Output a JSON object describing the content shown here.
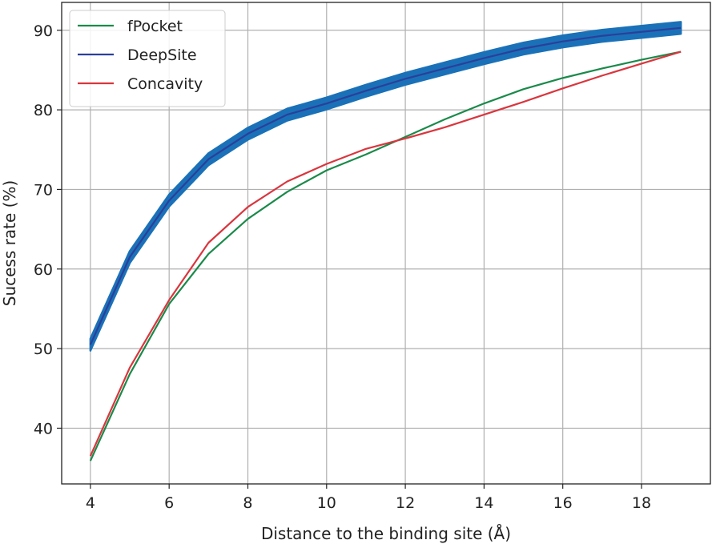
{
  "chart_data": {
    "type": "line",
    "title": "",
    "xlabel": "Distance to the binding site (Å)",
    "ylabel": "Sucess rate (%)",
    "xlim": [
      3.27,
      19.75
    ],
    "ylim": [
      33.0,
      93.5
    ],
    "xticks": [
      4,
      6,
      8,
      10,
      12,
      14,
      16,
      18
    ],
    "yticks": [
      40,
      50,
      60,
      70,
      80,
      90
    ],
    "grid": true,
    "legend_position": "top-left",
    "x": [
      4,
      5,
      6,
      7,
      8,
      9,
      10,
      11,
      12,
      13,
      14,
      15,
      16,
      17,
      18,
      19
    ],
    "series": [
      {
        "name": "fPocket",
        "color": "#1a8a4a",
        "values": [
          35.9,
          46.8,
          55.6,
          61.9,
          66.3,
          69.7,
          72.4,
          74.4,
          76.6,
          78.8,
          80.8,
          82.6,
          84.0,
          85.2,
          86.3,
          87.3
        ]
      },
      {
        "name": "DeepSite",
        "color": "#2b3f9a",
        "band_color": "#1a71b8",
        "band_halfwidth": 0.75,
        "values": [
          50.5,
          61.5,
          68.6,
          73.8,
          77.0,
          79.4,
          80.8,
          82.4,
          83.9,
          85.2,
          86.5,
          87.7,
          88.6,
          89.3,
          89.8,
          90.3
        ]
      },
      {
        "name": "Concavity",
        "color": "#d9363e",
        "values": [
          36.5,
          47.6,
          56.1,
          63.3,
          67.8,
          71.0,
          73.2,
          75.1,
          76.4,
          77.8,
          79.4,
          81.0,
          82.7,
          84.3,
          85.8,
          87.3
        ]
      }
    ]
  }
}
